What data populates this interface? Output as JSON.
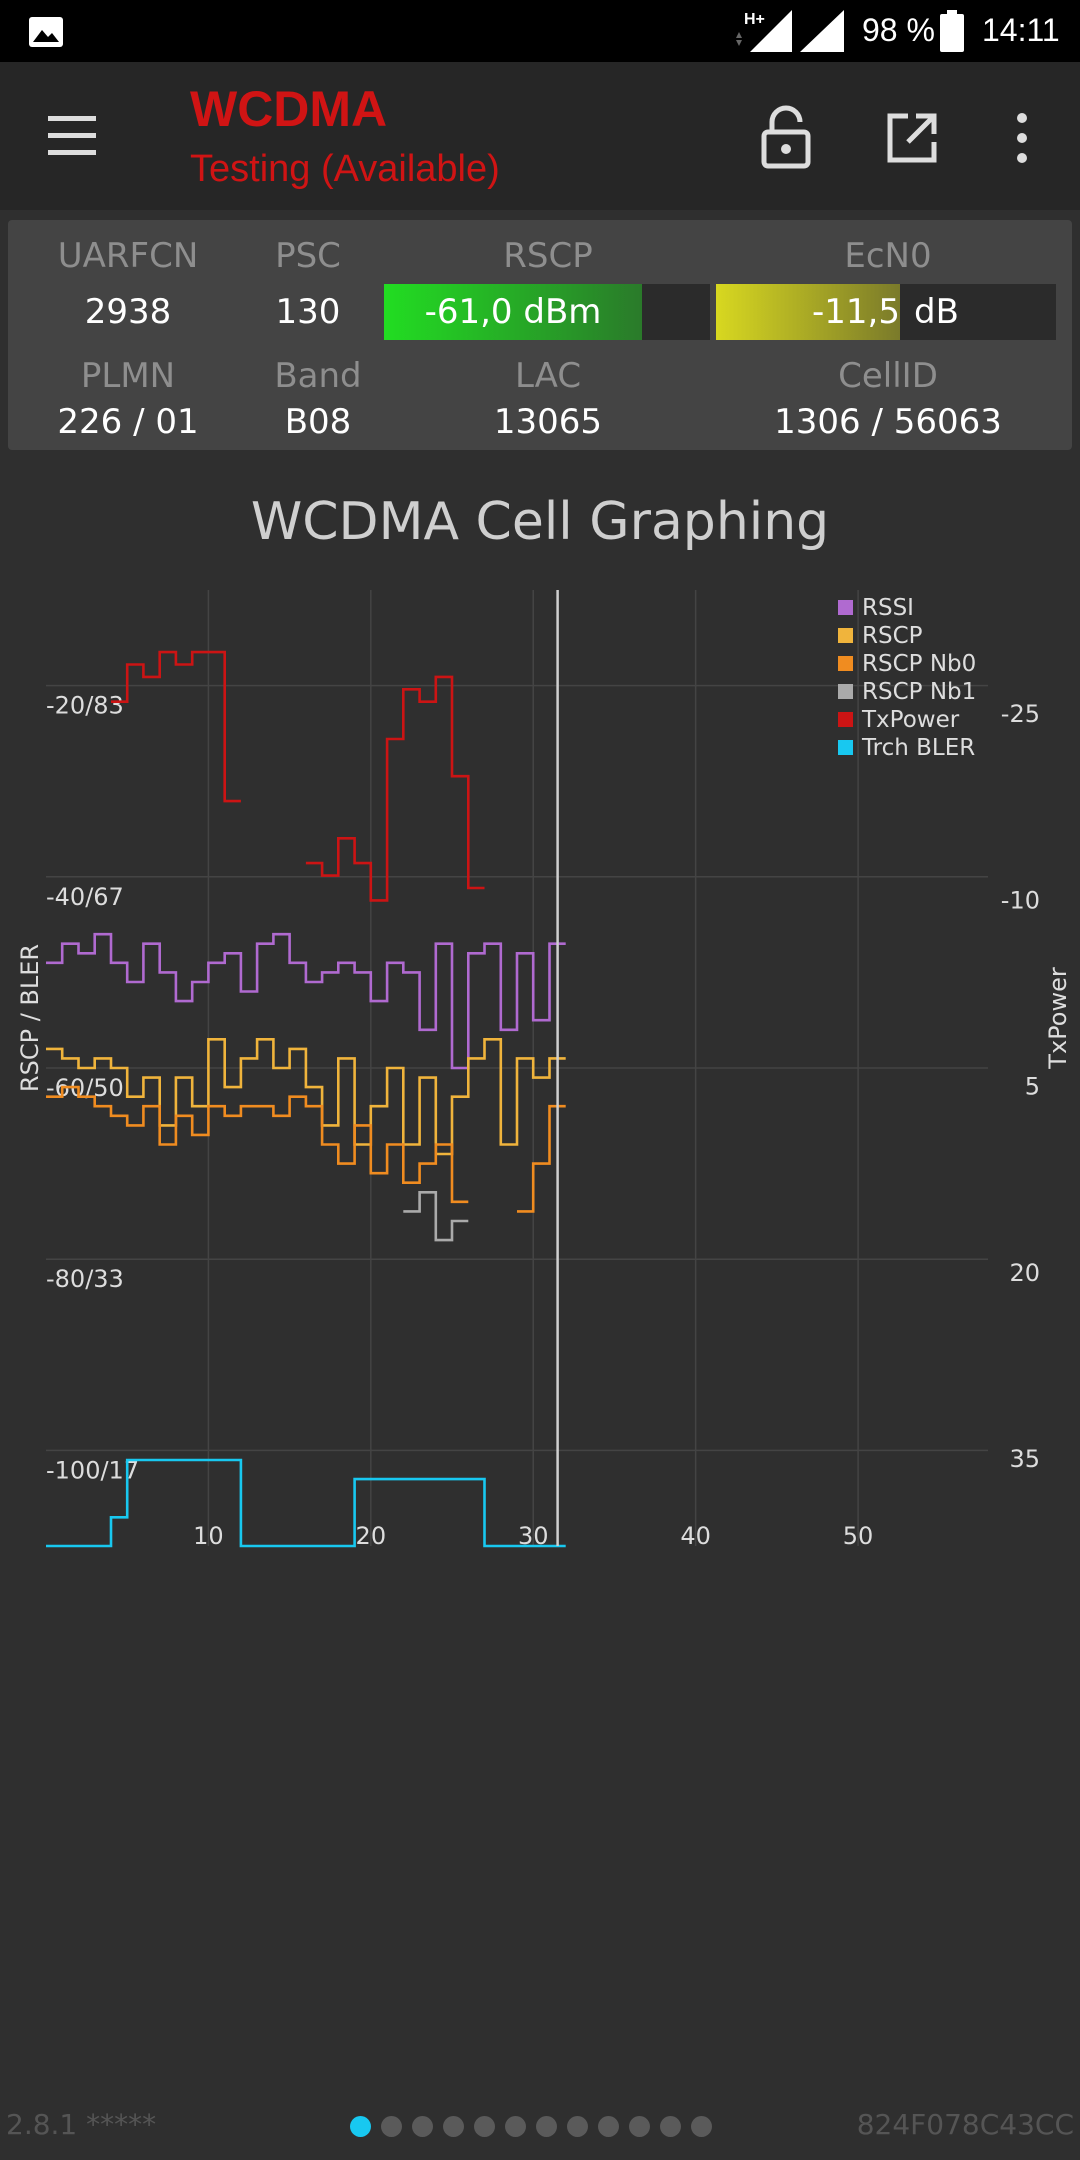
{
  "status_bar": {
    "network_type": "H+",
    "battery": "98 %",
    "time": "14:11",
    "icons": [
      "gallery-icon",
      "signal-icon",
      "signal-icon",
      "battery-icon"
    ]
  },
  "app_bar": {
    "title": "WCDMA",
    "subtitle": "Testing (Available)",
    "accent_color": "#d01414",
    "icons": [
      "menu-icon",
      "lock-open-icon",
      "open-external-icon",
      "more-vert-icon"
    ]
  },
  "info": {
    "labels": {
      "uarfcn": "UARFCN",
      "psc": "PSC",
      "rscp": "RSCP",
      "ecn0": "EcN0",
      "plmn": "PLMN",
      "band": "Band",
      "lac": "LAC",
      "cellid": "CellID"
    },
    "values": {
      "uarfcn": "2938",
      "psc": "130",
      "plmn": "226 / 01",
      "band": "B08",
      "lac": "13065",
      "cellid": "1306 / 56063"
    },
    "rscp_meter": {
      "text": "-61,0 dBm",
      "fraction": 0.79,
      "color_start": "#22dd22",
      "color_end": "#2a7a2a"
    },
    "ecn0_meter": {
      "value": "-11,5",
      "unit": "dB",
      "fraction": 0.54,
      "color_start": "#d8d820",
      "color_end": "#7a7a2a"
    }
  },
  "chart_data": {
    "type": "line",
    "title": "WCDMA Cell Graphing",
    "ylabel": "RSCP / BLER",
    "y2label": "TxPower",
    "xlim": [
      0,
      58
    ],
    "ylim": [
      -110,
      -10
    ],
    "y2lim": [
      -35,
      42
    ],
    "x_ticks": [
      "10",
      "20",
      "30",
      "40",
      "50"
    ],
    "y_ticks": [
      "-20/83",
      "-40/67",
      "-60/50",
      "-80/33",
      "-100/17"
    ],
    "y2_ticks": [
      "-25",
      "-10",
      "5",
      "20",
      "35"
    ],
    "cursor_x": 31.5,
    "grid": true,
    "legend_position": "top-right",
    "series": [
      {
        "name": "RSSI",
        "axis": "left",
        "color": "#b06ad0",
        "x": [
          0,
          1,
          2,
          3,
          4,
          5,
          6,
          7,
          8,
          9,
          10,
          11,
          12,
          13,
          14,
          15,
          16,
          17,
          18,
          19,
          20,
          21,
          22,
          23,
          24,
          25,
          26,
          27,
          28,
          29,
          30,
          31
        ],
        "y": [
          -49,
          -47,
          -48,
          -46,
          -49,
          -51,
          -47,
          -50,
          -53,
          -51,
          -49,
          -48,
          -52,
          -47,
          -46,
          -49,
          -51,
          -50,
          -49,
          -50,
          -53,
          -49,
          -50,
          -56,
          -47,
          -60,
          -48,
          -47,
          -56,
          -48,
          -55,
          -47
        ]
      },
      {
        "name": "RSCP",
        "axis": "left",
        "color": "#f0b43c",
        "x": [
          0,
          1,
          2,
          3,
          4,
          5,
          6,
          7,
          8,
          9,
          10,
          11,
          12,
          13,
          14,
          15,
          16,
          17,
          18,
          19,
          20,
          21,
          22,
          23,
          24,
          25,
          26,
          27,
          28,
          29,
          30,
          31
        ],
        "y": [
          -58,
          -59,
          -60,
          -59,
          -60,
          -63,
          -61,
          -66,
          -61,
          -64,
          -57,
          -62,
          -59,
          -57,
          -60,
          -58,
          -62,
          -66,
          -59,
          -68,
          -64,
          -60,
          -68,
          -61,
          -69,
          -63,
          -59,
          -57,
          -68,
          -59,
          -61,
          -59
        ]
      },
      {
        "name": "RSCP Nb0",
        "axis": "left",
        "color": "#f08c20",
        "x": [
          0,
          1,
          2,
          3,
          4,
          5,
          6,
          7,
          8,
          9,
          10,
          11,
          12,
          13,
          14,
          15,
          16,
          17,
          18,
          19,
          20,
          21,
          22,
          23,
          24,
          25,
          26,
          27,
          28,
          29,
          30,
          31
        ],
        "y": [
          -63,
          -62,
          -63,
          -64,
          -65,
          -66,
          -64,
          -68,
          -65,
          -67,
          -64,
          -65,
          -64,
          -64,
          -65,
          -63,
          -64,
          -68,
          -70,
          -66,
          -71,
          -68,
          -72,
          -70,
          -68,
          -74,
          null,
          null,
          null,
          -75,
          -70,
          -64
        ]
      },
      {
        "name": "RSCP Nb1",
        "axis": "left",
        "color": "#aaaaaa",
        "x": [
          22,
          23,
          24,
          25
        ],
        "y": [
          -75,
          -73,
          -78,
          -76
        ]
      },
      {
        "name": "TxPower",
        "axis": "right",
        "color": "#cc1414",
        "x": [
          4,
          5,
          6,
          7,
          8,
          9,
          10,
          11,
          12,
          16,
          17,
          18,
          19,
          20,
          21,
          22,
          23,
          24,
          25,
          26
        ],
        "y": [
          -26,
          -29,
          -28,
          -30,
          -29,
          -30,
          -30,
          -18,
          null,
          -13,
          -12,
          -15,
          -13,
          -10,
          -23,
          -27,
          -26,
          -28,
          -20,
          -11
        ]
      },
      {
        "name": "Trch BLER",
        "axis": "left",
        "color": "#18c8f0",
        "x": [
          0,
          1,
          2,
          3,
          4,
          5,
          6,
          7,
          12,
          13,
          14,
          15,
          16,
          17,
          18,
          19,
          20,
          21,
          27,
          28,
          29,
          30,
          31
        ],
        "y": [
          -110,
          -110,
          -110,
          -110,
          -107,
          -101,
          -101,
          -101,
          -110,
          -110,
          -110,
          -110,
          -110,
          -110,
          -110,
          -103,
          -103,
          -103,
          -110,
          -110,
          -110,
          -110,
          -110
        ]
      }
    ]
  },
  "footer": {
    "version": "2.8.1 *****",
    "device_id": "824F078C43CC",
    "page_count": 12,
    "active_page": 0
  }
}
